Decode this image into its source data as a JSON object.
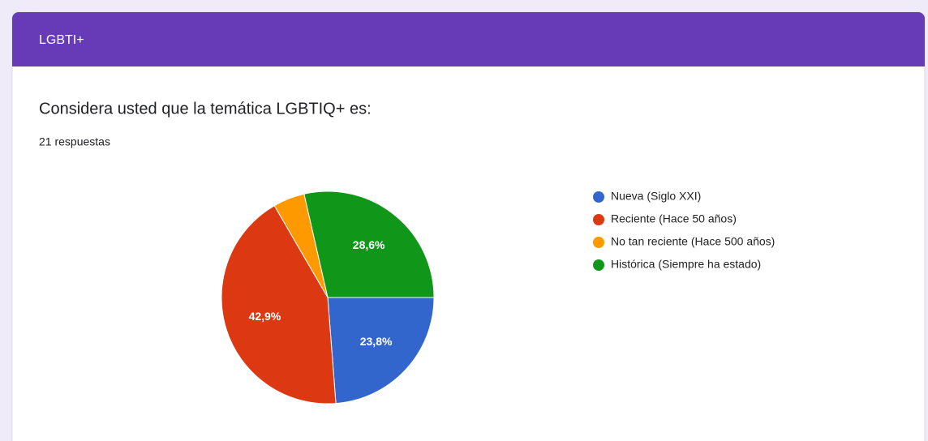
{
  "header": {
    "title": "LGBTI+"
  },
  "chart_data": {
    "type": "pie",
    "title": "Considera usted que la temática LGBTIQ+ es:",
    "subtitle": "21 respuestas",
    "categories": [
      "Nueva (Siglo XXI)",
      "Reciente (Hace 50 años)",
      "No tan reciente (Hace 500 años)",
      "Histórica (Siempre ha estado)"
    ],
    "values": [
      23.8,
      42.9,
      4.8,
      28.6
    ],
    "value_labels": [
      "23,8%",
      "42,9%",
      null,
      "28,6%"
    ],
    "colors": [
      "#3366cc",
      "#dc3912",
      "#ff9900",
      "#109618"
    ],
    "legend": "right"
  }
}
